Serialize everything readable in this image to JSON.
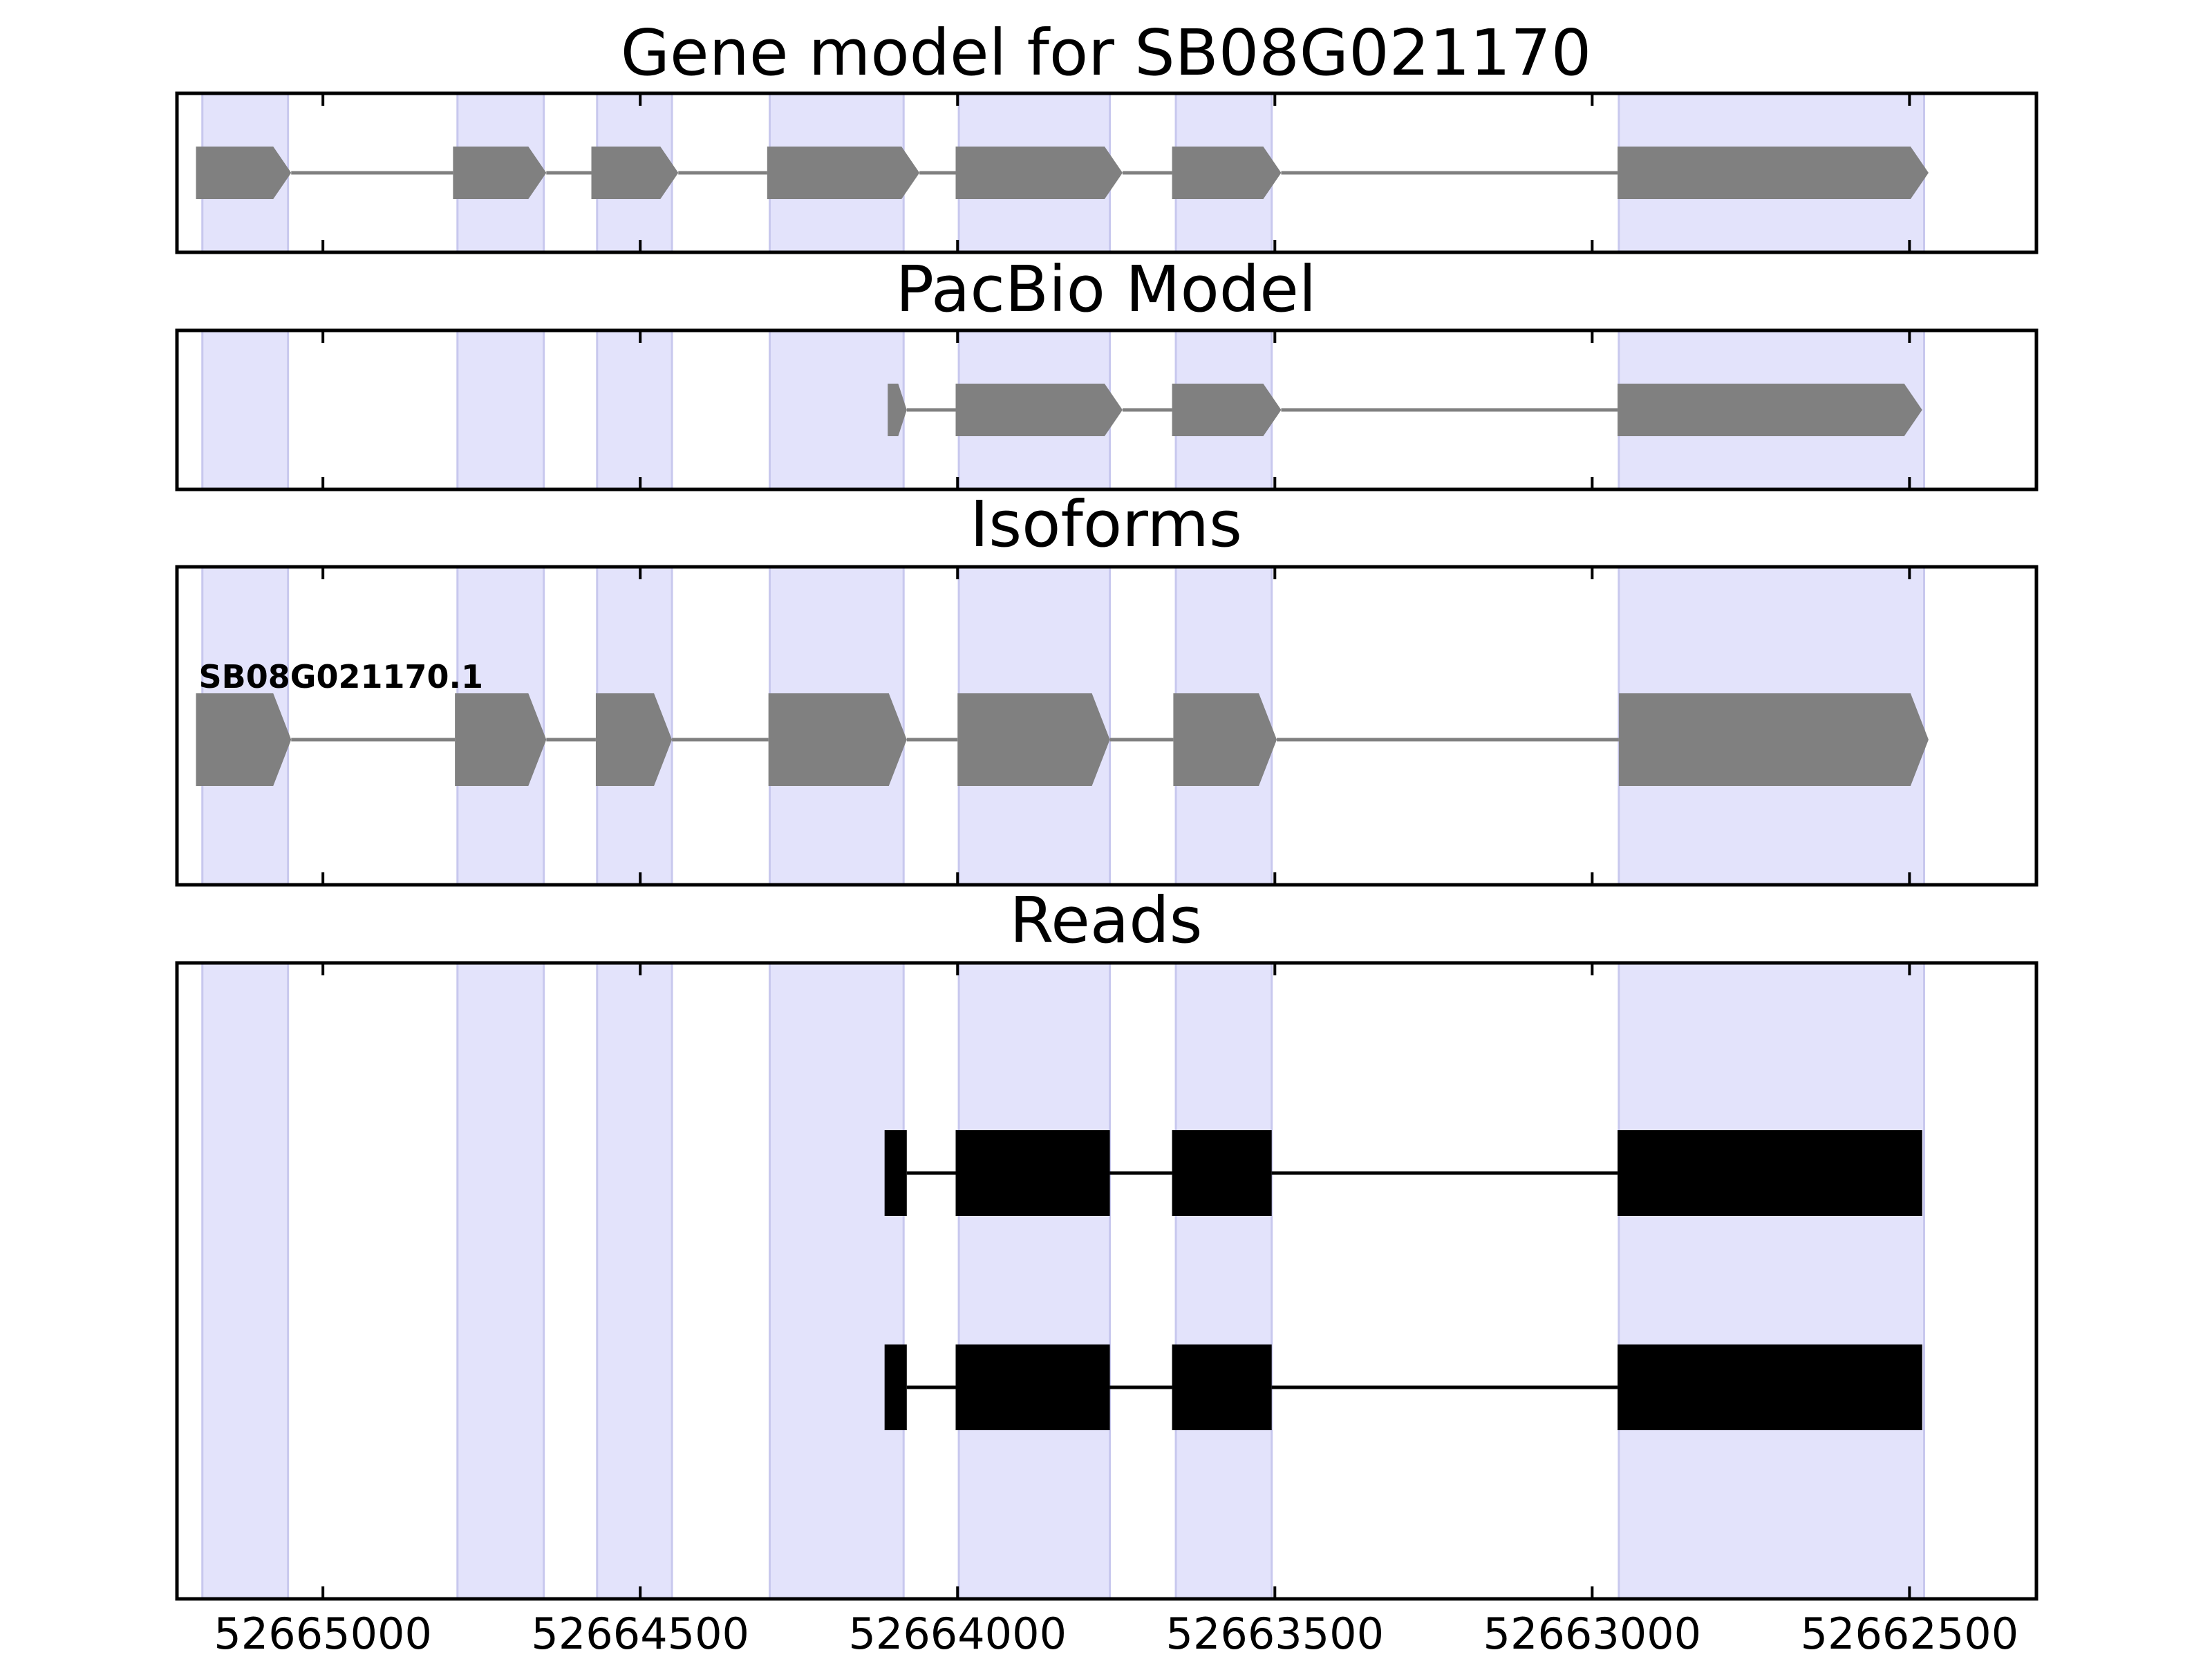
{
  "chart_data": {
    "type": "gene-model",
    "figure_title": "Gene model for SB08G021170",
    "x_axis": {
      "reversed": true,
      "xlim": [
        52665230,
        52662300
      ],
      "ticks": [
        52665000,
        52664500,
        52664000,
        52663500,
        52663000,
        52662500
      ],
      "tick_labels": [
        "52665000",
        "52664500",
        "52664000",
        "52663500",
        "52663000",
        "52662500"
      ]
    },
    "highlight_color": "#e3e3fb",
    "exon_regions": [
      [
        52665190,
        52665055
      ],
      [
        52664788,
        52664652
      ],
      [
        52664568,
        52664450
      ],
      [
        52664296,
        52664085
      ],
      [
        52663998,
        52663760
      ],
      [
        52663656,
        52663505
      ],
      [
        52662958,
        52662477
      ]
    ],
    "panels": [
      {
        "title": "Gene model for SB08G021170",
        "kind": "model",
        "color": "#808080",
        "transcripts": [
          {
            "label": "",
            "strand": "-",
            "exons": [
              [
                52665200,
                52665050
              ],
              [
                52664795,
                52664648
              ],
              [
                52664577,
                52664440
              ],
              [
                52664300,
                52664060
              ],
              [
                52664003,
                52663740
              ],
              [
                52663662,
                52663490
              ],
              [
                52662960,
                52662470
              ]
            ]
          }
        ]
      },
      {
        "title": "PacBio Model",
        "kind": "model",
        "color": "#808080",
        "transcripts": [
          {
            "label": "",
            "strand": "-",
            "exons": [
              [
                52664110,
                52664080
              ],
              [
                52664003,
                52663740
              ],
              [
                52663662,
                52663490
              ],
              [
                52662960,
                52662480
              ]
            ]
          }
        ]
      },
      {
        "title": "Isoforms",
        "kind": "isoform",
        "color": "#808080",
        "transcripts": [
          {
            "label": "SB08G021170.1",
            "strand": "-",
            "exons": [
              [
                52665200,
                52665050
              ],
              [
                52664792,
                52664648
              ],
              [
                52664570,
                52664450
              ],
              [
                52664298,
                52664080
              ],
              [
                52664000,
                52663760
              ],
              [
                52663660,
                52663497
              ],
              [
                52662958,
                52662470
              ]
            ]
          }
        ]
      },
      {
        "title": "Reads",
        "kind": "reads",
        "color": "#000000",
        "transcripts": [
          {
            "label": "",
            "strand": "",
            "exons": [
              [
                52664115,
                52664080
              ],
              [
                52664003,
                52663760
              ],
              [
                52663662,
                52663505
              ],
              [
                52662960,
                52662480
              ]
            ]
          },
          {
            "label": "",
            "strand": "",
            "exons": [
              [
                52664115,
                52664080
              ],
              [
                52664003,
                52663760
              ],
              [
                52663662,
                52663505
              ],
              [
                52662960,
                52662480
              ]
            ]
          }
        ]
      }
    ]
  }
}
